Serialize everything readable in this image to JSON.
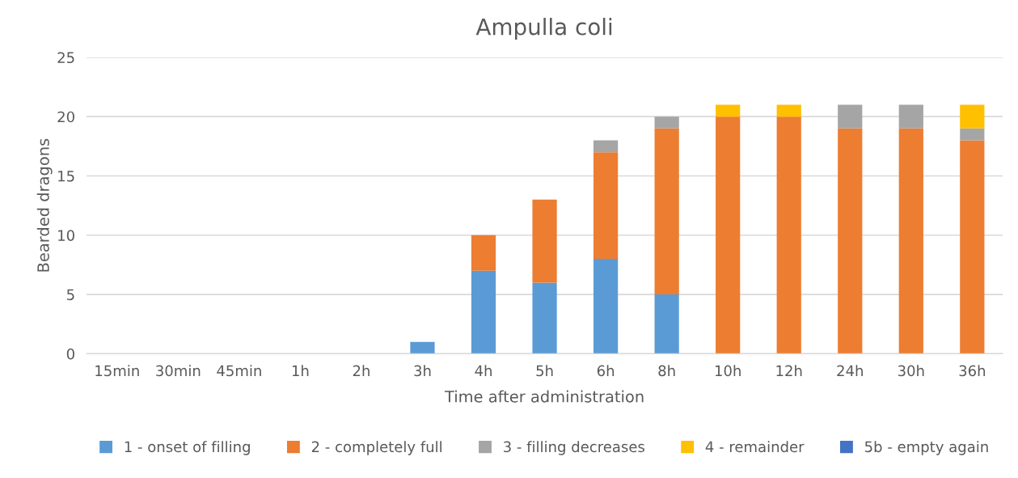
{
  "chart_data": {
    "type": "bar",
    "title": "Ampulla coli",
    "xlabel": "Time after administration",
    "ylabel": "Bearded dragons",
    "categories": [
      "15min",
      "30min",
      "45min",
      "1h",
      "2h",
      "3h",
      "4h",
      "5h",
      "6h",
      "8h",
      "10h",
      "12h",
      "24h",
      "30h",
      "36h"
    ],
    "stacked": true,
    "ylim": [
      0,
      25
    ],
    "yticks": [
      0,
      5,
      10,
      15,
      20,
      25
    ],
    "grid": "y",
    "legend": "bottom",
    "series": [
      {
        "name": "1 - onset of filling",
        "color": "#5b9bd5",
        "values": [
          0,
          0,
          0,
          0,
          0,
          1,
          7,
          6,
          8,
          5,
          0,
          0,
          0,
          0,
          0
        ]
      },
      {
        "name": "2 - completely full",
        "color": "#ed7d31",
        "values": [
          0,
          0,
          0,
          0,
          0,
          0,
          3,
          7,
          9,
          14,
          20,
          20,
          19,
          19,
          18
        ]
      },
      {
        "name": "3 - filling decreases",
        "color": "#a5a5a5",
        "values": [
          0,
          0,
          0,
          0,
          0,
          0,
          0,
          0,
          1,
          1,
          0,
          0,
          2,
          2,
          1
        ]
      },
      {
        "name": "4 - remainder",
        "color": "#ffc000",
        "values": [
          0,
          0,
          0,
          0,
          0,
          0,
          0,
          0,
          0,
          0,
          1,
          1,
          0,
          0,
          2
        ]
      },
      {
        "name": "5b - empty again",
        "color": "#4472c4",
        "values": [
          0,
          0,
          0,
          0,
          0,
          0,
          0,
          0,
          0,
          0,
          0,
          0,
          0,
          0,
          0
        ]
      }
    ]
  }
}
